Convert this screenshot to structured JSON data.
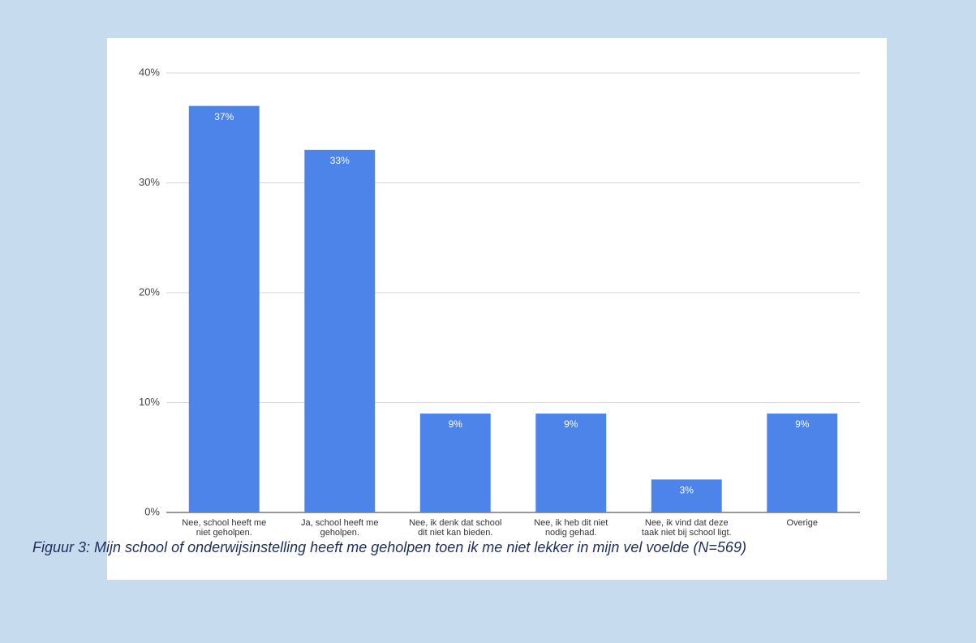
{
  "chart_data": {
    "type": "bar",
    "categories": [
      "Nee, school heeft me niet geholpen.",
      "Ja, school heeft me geholpen.",
      "Nee, ik denk dat school dit niet kan bieden.",
      "Nee, ik heb dit niet nodig gehad.",
      "Nee, ik vind dat deze taak niet bij school ligt.",
      "Overige"
    ],
    "values": [
      37,
      33,
      9,
      9,
      3,
      9
    ],
    "value_labels": [
      "37%",
      "33%",
      "9%",
      "9%",
      "3%",
      "9%"
    ],
    "color": "#4d84ea",
    "ylim": [
      0,
      40
    ],
    "yticks": [
      {
        "value": 0,
        "label": "0%"
      },
      {
        "value": 10,
        "label": "10%"
      },
      {
        "value": 20,
        "label": "20%"
      },
      {
        "value": 30,
        "label": "30%"
      },
      {
        "value": 40,
        "label": "40%"
      }
    ],
    "grid": true,
    "caption": "Figuur 3: Mijn school of onderwijsinstelling heeft me geholpen toen ik me niet lekker in mijn vel voelde (N=569)"
  }
}
